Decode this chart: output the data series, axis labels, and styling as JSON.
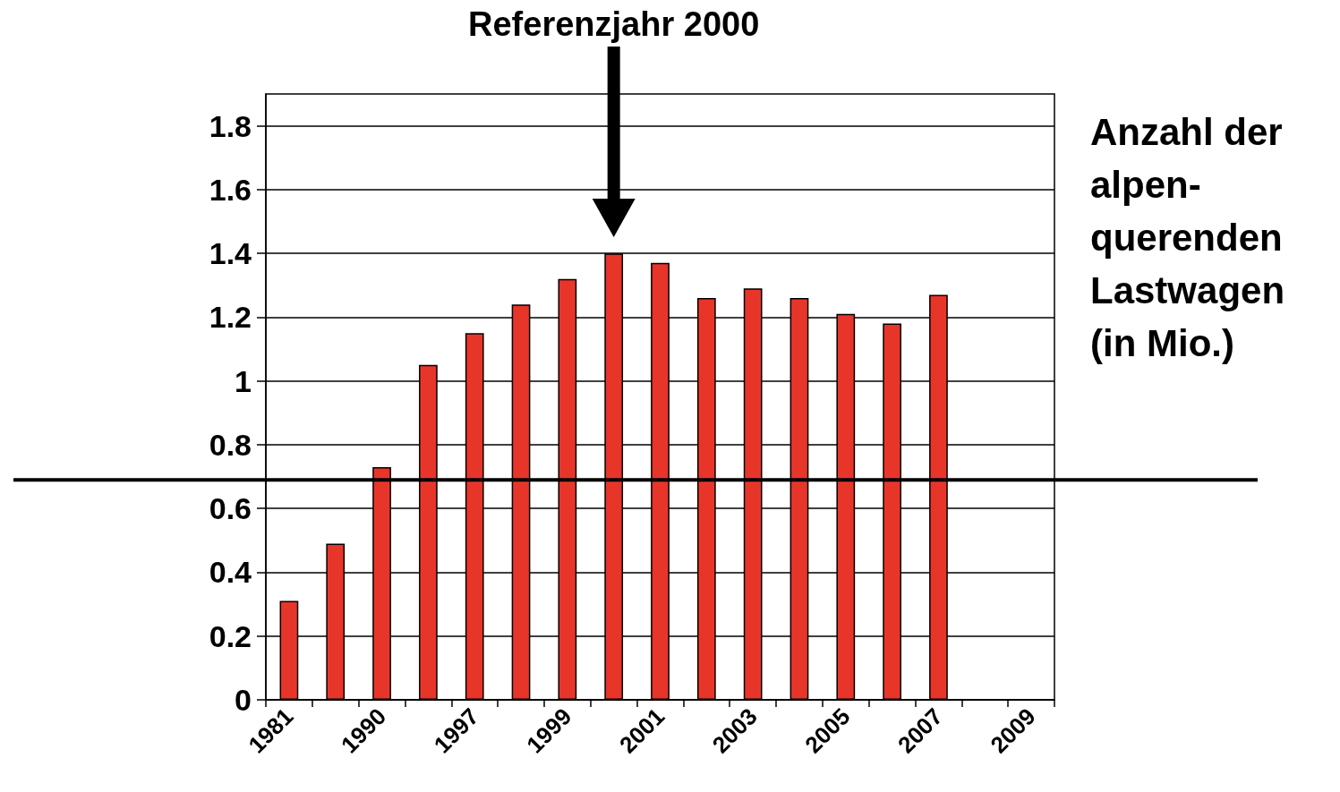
{
  "chart_data": {
    "type": "bar",
    "ylabel": "Anzahl der\nalpen-\nquerenden\nLastwagen\n(in Mio.)",
    "annotations": [
      "Referenzjahr 2000"
    ],
    "categories": [
      "1981",
      null,
      "1990",
      null,
      "1997",
      null,
      "1999",
      null,
      "2001",
      null,
      "2003",
      null,
      "2005",
      null,
      "2007",
      null,
      "2009"
    ],
    "values": [
      0.31,
      0.49,
      0.73,
      1.05,
      1.15,
      1.24,
      1.32,
      1.4,
      1.37,
      1.26,
      1.29,
      1.26,
      1.21,
      1.18,
      1.27,
      null,
      null
    ],
    "color": "#e8352a",
    "ylim": [
      0,
      1.9
    ],
    "yticks": [
      0,
      0.2,
      0.4,
      0.6,
      0.8,
      1,
      1.2,
      1.4,
      1.6,
      1.8
    ],
    "grid": "y",
    "ref_lines": [
      {
        "axis": "y",
        "value": 0.69,
        "color": "#000000"
      }
    ]
  }
}
